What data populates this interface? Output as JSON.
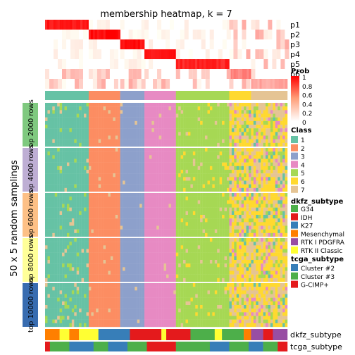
{
  "chart_data": {
    "type": "heatmap",
    "title": "membership heatmap, k = 7",
    "membership_rows": [
      "p1",
      "p2",
      "p3",
      "p4",
      "p5",
      "p6",
      "p7"
    ],
    "membership_blocks": [
      {
        "row": "p1",
        "class": "1",
        "prob": 0.9
      },
      {
        "row": "p2",
        "class": "2",
        "prob": 0.95
      },
      {
        "row": "p3",
        "class": "3",
        "prob": 0.95
      },
      {
        "row": "p4",
        "class": "4",
        "prob": 0.9
      },
      {
        "row": "p5",
        "class": "5",
        "prob": 0.85
      },
      {
        "row": "p6",
        "class": "6",
        "prob": 0.5
      },
      {
        "row": "p7",
        "class": "7",
        "prob": 0.35
      }
    ],
    "class_strip": [
      {
        "class": "1",
        "share": 0.18
      },
      {
        "class": "2",
        "share": 0.13
      },
      {
        "class": "3",
        "share": 0.1
      },
      {
        "class": "4",
        "share": 0.13
      },
      {
        "class": "5",
        "share": 0.22
      },
      {
        "class": "6",
        "share": 0.09
      },
      {
        "class": "7",
        "share": 0.15
      }
    ],
    "y_axis_label": "50 x 5 random samplings",
    "row_groups": [
      "top 2000 rows",
      "top 4000 rows",
      "top 6000 rows",
      "top 8000 rows",
      "top 10000 rows"
    ],
    "row_group_colors": [
      "#7fc97f",
      "#beaed4",
      "#fdc086",
      "#ffff99",
      "#386cb0"
    ],
    "bottom_annotations": [
      "dkfz_subtype",
      "tcga_subtype"
    ],
    "dkfz_segments": [
      {
        "value": "Mesenchymal",
        "share": 0.06
      },
      {
        "value": "RTK II Classic",
        "share": 0.04
      },
      {
        "value": "Mesenchymal",
        "share": 0.04
      },
      {
        "value": "RTK II Classic",
        "share": 0.08
      },
      {
        "value": "K27",
        "share": 0.13
      },
      {
        "value": "IDH",
        "share": 0.13
      },
      {
        "value": "RTK II Classic",
        "share": 0.02
      },
      {
        "value": "IDH",
        "share": 0.1
      },
      {
        "value": "G34",
        "share": 0.1
      },
      {
        "value": "RTK II Classic",
        "share": 0.03
      },
      {
        "value": "G34",
        "share": 0.09
      },
      {
        "value": "Mesenchymal",
        "share": 0.03
      },
      {
        "value": "RTK I PDGFRA",
        "share": 0.05
      },
      {
        "value": "IDH",
        "share": 0.04
      },
      {
        "value": "RTK I PDGFRA",
        "share": 0.06
      }
    ],
    "tcga_segments": [
      {
        "value": "G-CIMP+",
        "share": 0.02
      },
      {
        "value": "Cluster #3",
        "share": 0.08
      },
      {
        "value": "Cluster #2",
        "share": 0.1
      },
      {
        "value": "Cluster #3",
        "share": 0.06
      },
      {
        "value": "Cluster #2",
        "share": 0.08
      },
      {
        "value": "Cluster #3",
        "share": 0.08
      },
      {
        "value": "G-CIMP+",
        "share": 0.12
      },
      {
        "value": "Cluster #3",
        "share": 0.14
      },
      {
        "value": "Cluster #2",
        "share": 0.08
      },
      {
        "value": "Cluster #3",
        "share": 0.08
      },
      {
        "value": "Cluster #2",
        "share": 0.06
      },
      {
        "value": "Cluster #3",
        "share": 0.06
      },
      {
        "value": "G-CIMP+",
        "share": 0.04
      }
    ],
    "legends": {
      "prob": {
        "title": "Prob",
        "ticks": [
          "1",
          "0.8",
          "0.6",
          "0.4",
          "0.2",
          "0"
        ],
        "colors": [
          "#ff0000",
          "#ffffff"
        ]
      },
      "class": {
        "title": "Class",
        "items": [
          {
            "label": "1",
            "color": "#66c2a5"
          },
          {
            "label": "2",
            "color": "#fc8d62"
          },
          {
            "label": "3",
            "color": "#8da0cb"
          },
          {
            "label": "4",
            "color": "#e78ac3"
          },
          {
            "label": "5",
            "color": "#a6d854"
          },
          {
            "label": "6",
            "color": "#ffd92f"
          },
          {
            "label": "7",
            "color": "#e5c494"
          }
        ]
      },
      "dkfz_subtype": {
        "title": "dkfz_subtype",
        "items": [
          {
            "label": "G34",
            "color": "#4daf4a"
          },
          {
            "label": "IDH",
            "color": "#e41a1c"
          },
          {
            "label": "K27",
            "color": "#377eb8"
          },
          {
            "label": "Mesenchymal",
            "color": "#ff7f00"
          },
          {
            "label": "RTK I PDGFRA",
            "color": "#984ea3"
          },
          {
            "label": "RTK II Classic",
            "color": "#ffff33"
          }
        ]
      },
      "tcga_subtype": {
        "title": "tcga_subtype",
        "items": [
          {
            "label": "Cluster #2",
            "color": "#377eb8"
          },
          {
            "label": "Cluster #3",
            "color": "#4daf4a"
          },
          {
            "label": "G-CIMP+",
            "color": "#e41a1c"
          }
        ]
      }
    }
  }
}
